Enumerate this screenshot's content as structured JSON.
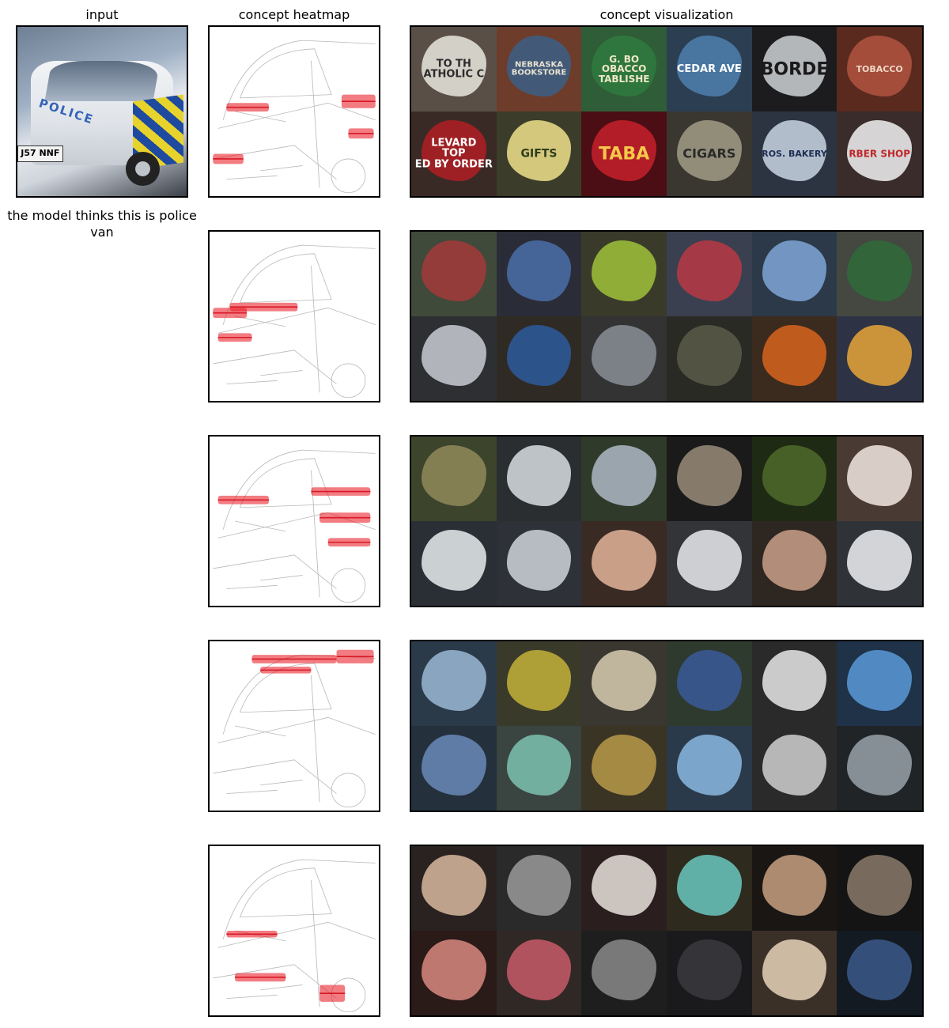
{
  "titles": {
    "input": "input",
    "heatmap": "concept heatmap",
    "visualization": "concept visualization"
  },
  "input_image": {
    "police_text": "POLICE",
    "plate_text": "J57 NNF"
  },
  "caption": "the model thinks this is police van",
  "concepts": [
    {
      "tiles": [
        {
          "bg": "#5a4f46",
          "hl": "#e9e6df",
          "text": "TO TH\nATHOLIC C",
          "tc": "#2b2b2b",
          "fs": 13
        },
        {
          "bg": "#6e3c2a",
          "hl": "#3b5f86",
          "text": "NEBRASKA\nBOOKSTORE",
          "tc": "#e8e2d2",
          "fs": 10
        },
        {
          "bg": "#2f5d37",
          "hl": "#2e7a3e",
          "text": "G. BO\nOBACCO\nTABLISHE",
          "tc": "#efe7c6",
          "fs": 12
        },
        {
          "bg": "#2c3e52",
          "hl": "#4f80ae",
          "text": "CEDAR AVE",
          "tc": "#ffffff",
          "fs": 13
        },
        {
          "bg": "#1c1c1f",
          "hl": "#cfd2d6",
          "text": "BORDE",
          "tc": "#1a1a1a",
          "fs": 22
        },
        {
          "bg": "#5a2a1e",
          "hl": "#b0533f",
          "text": "TOBACCO",
          "tc": "#f1d6c5",
          "fs": 11
        },
        {
          "bg": "#3a2a26",
          "hl": "#b21f24",
          "text": "LEVARD\nTOP\nED BY ORDER",
          "tc": "#ffffff",
          "fs": 13
        },
        {
          "bg": "#3b3d2a",
          "hl": "#efe08a",
          "text": "GIFTS",
          "tc": "#2f3b1c",
          "fs": 14
        },
        {
          "bg": "#4a0e14",
          "hl": "#c5202a",
          "text": "TABA",
          "tc": "#f5c84a",
          "fs": 22
        },
        {
          "bg": "#3a3630",
          "hl": "#a29c86",
          "text": "CIGARS",
          "tc": "#2a2a2a",
          "fs": 16
        },
        {
          "bg": "#2b3440",
          "hl": "#c9d6e4",
          "text": "ROS. BAKERY",
          "tc": "#1e2d52",
          "fs": 11
        },
        {
          "bg": "#3a2c2a",
          "hl": "#f2f2f2",
          "text": "RBER SHOP",
          "tc": "#c0262a",
          "fs": 12
        }
      ]
    },
    {
      "tiles": [
        {
          "bg": "#3f4a3a",
          "hl": "#a33a3a",
          "text": "",
          "tc": "#fff",
          "fs": 10
        },
        {
          "bg": "#2a2d38",
          "hl": "#4a6ea8",
          "text": "",
          "tc": "#fff",
          "fs": 10
        },
        {
          "bg": "#3a3a2a",
          "hl": "#9fc23a",
          "text": "",
          "tc": "#fff",
          "fs": 10
        },
        {
          "bg": "#3a4050",
          "hl": "#b83a44",
          "text": "",
          "tc": "#fff",
          "fs": 10
        },
        {
          "bg": "#2c3948",
          "hl": "#7fa6d8",
          "text": "",
          "tc": "#fff",
          "fs": 10
        },
        {
          "bg": "#444840",
          "hl": "#2f6b3a",
          "text": "",
          "tc": "#fff",
          "fs": 10
        },
        {
          "bg": "#2e2f33",
          "hl": "#c8cdd3",
          "text": "",
          "tc": "#fff",
          "fs": 10
        },
        {
          "bg": "#2f2a24",
          "hl": "#2c5a9c",
          "text": "",
          "tc": "#fff",
          "fs": 10
        },
        {
          "bg": "#333333",
          "hl": "#8a8f98",
          "text": "",
          "tc": "#fff",
          "fs": 10
        },
        {
          "bg": "#2a2a24",
          "hl": "#5a5a4a",
          "text": "",
          "tc": "#fff",
          "fs": 10
        },
        {
          "bg": "#3b2a1e",
          "hl": "#d8641e",
          "text": "",
          "tc": "#fff",
          "fs": 10
        },
        {
          "bg": "#2d3344",
          "hl": "#e8a63a",
          "text": "",
          "tc": "#fff",
          "fs": 10
        }
      ]
    },
    {
      "tiles": [
        {
          "bg": "#3d442c",
          "hl": "#8f8a5a",
          "text": "",
          "tc": "#fff",
          "fs": 10
        },
        {
          "bg": "#2a2e30",
          "hl": "#d8dde2",
          "text": "",
          "tc": "#fff",
          "fs": 10
        },
        {
          "bg": "#2f3a2a",
          "hl": "#aeb8c4",
          "text": "",
          "tc": "#fff",
          "fs": 10
        },
        {
          "bg": "#1a1a1a",
          "hl": "#9a8c7a",
          "text": "",
          "tc": "#fff",
          "fs": 10
        },
        {
          "bg": "#1f2a14",
          "hl": "#4e6a2a",
          "text": "",
          "tc": "#fff",
          "fs": 10
        },
        {
          "bg": "#4a3a34",
          "hl": "#f2e8e2",
          "text": "",
          "tc": "#fff",
          "fs": 10
        },
        {
          "bg": "#2a2f36",
          "hl": "#e8ecef",
          "text": "",
          "tc": "#fff",
          "fs": 10
        },
        {
          "bg": "#2e3238",
          "hl": "#cfd4da",
          "text": "",
          "tc": "#fff",
          "fs": 10
        },
        {
          "bg": "#3a2a24",
          "hl": "#e3b49a",
          "text": "",
          "tc": "#fff",
          "fs": 10
        },
        {
          "bg": "#333438",
          "hl": "#e9ebee",
          "text": "",
          "tc": "#fff",
          "fs": 10
        },
        {
          "bg": "#2e2620",
          "hl": "#c9a08a",
          "text": "",
          "tc": "#fff",
          "fs": 10
        },
        {
          "bg": "#2f3338",
          "hl": "#f0f1f3",
          "text": "",
          "tc": "#fff",
          "fs": 10
        }
      ]
    },
    {
      "tiles": [
        {
          "bg": "#2a3a48",
          "hl": "#9ab8d6",
          "text": "",
          "tc": "#fff",
          "fs": 10
        },
        {
          "bg": "#3a3a2a",
          "hl": "#c4b23a",
          "text": "",
          "tc": "#fff",
          "fs": 10
        },
        {
          "bg": "#3a3630",
          "hl": "#d8ccb2",
          "text": "",
          "tc": "#fff",
          "fs": 10
        },
        {
          "bg": "#2f3a2e",
          "hl": "#3a5a9a",
          "text": "",
          "tc": "#fff",
          "fs": 10
        },
        {
          "bg": "#2a2a2a",
          "hl": "#e8e8e8",
          "text": "",
          "tc": "#fff",
          "fs": 10
        },
        {
          "bg": "#1f3248",
          "hl": "#5a9ad8",
          "text": "",
          "tc": "#fff",
          "fs": 10
        },
        {
          "bg": "#24303c",
          "hl": "#6a8ab8",
          "text": "",
          "tc": "#fff",
          "fs": 10
        },
        {
          "bg": "#3a4440",
          "hl": "#7ec2b0",
          "text": "",
          "tc": "#fff",
          "fs": 10
        },
        {
          "bg": "#3a3424",
          "hl": "#b89a4a",
          "text": "",
          "tc": "#fff",
          "fs": 10
        },
        {
          "bg": "#2a3a4a",
          "hl": "#8ab8e0",
          "text": "",
          "tc": "#fff",
          "fs": 10
        },
        {
          "bg": "#2a2a2a",
          "hl": "#d0d0d0",
          "text": "",
          "tc": "#fff",
          "fs": 10
        },
        {
          "bg": "#202426",
          "hl": "#9aa2aa",
          "text": "",
          "tc": "#fff",
          "fs": 10
        }
      ]
    },
    {
      "tiles": [
        {
          "bg": "#2a2220",
          "hl": "#d8b8a0",
          "text": "",
          "tc": "#fff",
          "fs": 10
        },
        {
          "bg": "#2a2a2a",
          "hl": "#9a9a9a",
          "text": "",
          "tc": "#fff",
          "fs": 10
        },
        {
          "bg": "#2a1e1e",
          "hl": "#e8e2dc",
          "text": "",
          "tc": "#fff",
          "fs": 10
        },
        {
          "bg": "#2e2a1e",
          "hl": "#6ac8c0",
          "text": "",
          "tc": "#fff",
          "fs": 10
        },
        {
          "bg": "#1a1614",
          "hl": "#c8a080",
          "text": "",
          "tc": "#fff",
          "fs": 10
        },
        {
          "bg": "#141414",
          "hl": "#8a7a6a",
          "text": "",
          "tc": "#fff",
          "fs": 10
        },
        {
          "bg": "#2a1a18",
          "hl": "#d88a80",
          "text": "",
          "tc": "#fff",
          "fs": 10
        },
        {
          "bg": "#302824",
          "hl": "#c85a6a",
          "text": "",
          "tc": "#fff",
          "fs": 10
        },
        {
          "bg": "#1e1e1e",
          "hl": "#8a8a8a",
          "text": "",
          "tc": "#fff",
          "fs": 10
        },
        {
          "bg": "#1a1a1c",
          "hl": "#3a3a3e",
          "text": "",
          "tc": "#fff",
          "fs": 10
        },
        {
          "bg": "#3a3028",
          "hl": "#e8d2b8",
          "text": "",
          "tc": "#fff",
          "fs": 10
        },
        {
          "bg": "#141a22",
          "hl": "#3a5a8a",
          "text": "",
          "tc": "#fff",
          "fs": 10
        }
      ]
    }
  ]
}
